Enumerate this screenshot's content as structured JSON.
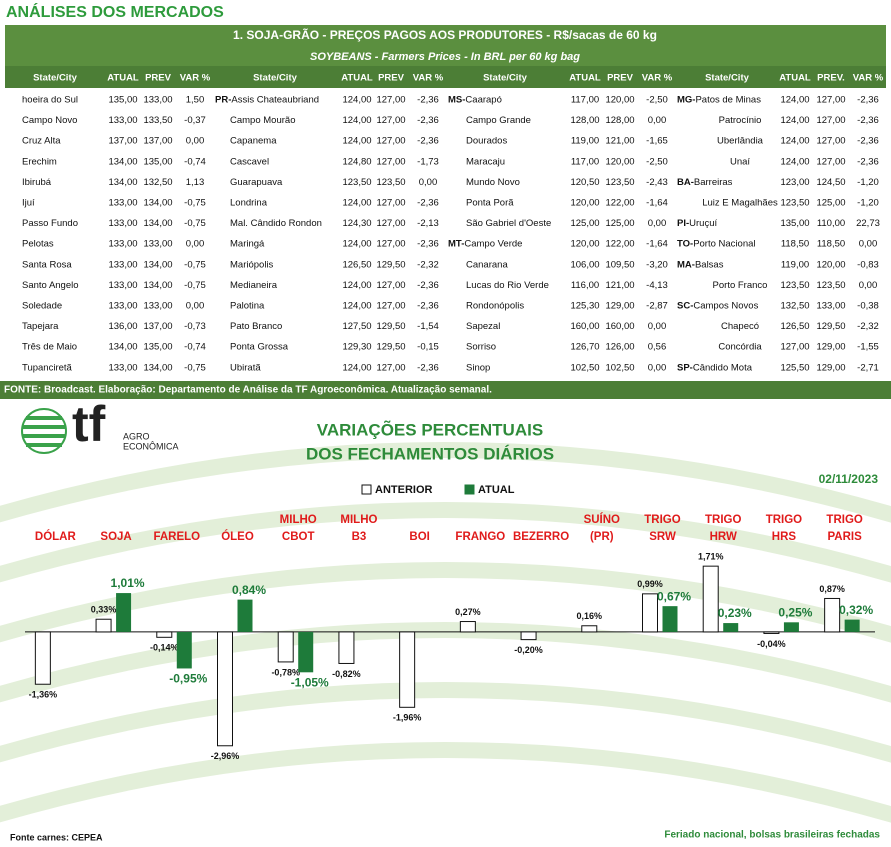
{
  "header": {
    "title": "ANÁLISES DOS MERCADOS"
  },
  "table": {
    "title": "1. SOJA-GRÃO - PREÇOS PAGOS AOS PRODUTORES - R$/sacas de 60 kg",
    "subtitle": "SOYBEANS - Farmers Prices - In BRL per 60 kg bag",
    "groups": [
      {
        "headers": [
          "State/City",
          "ATUAL",
          "PREV",
          "VAR %"
        ],
        "rows": [
          {
            "city": "hoeira do Sul",
            "atual": "135,00",
            "prev": "133,00",
            "var": "1,50"
          },
          {
            "city": "Campo Novo",
            "atual": "133,00",
            "prev": "133,50",
            "var": "-0,37"
          },
          {
            "city": "Cruz Alta",
            "atual": "137,00",
            "prev": "137,00",
            "var": "0,00"
          },
          {
            "city": "Erechim",
            "atual": "134,00",
            "prev": "135,00",
            "var": "-0,74"
          },
          {
            "city": "Ibirubá",
            "atual": "134,00",
            "prev": "132,50",
            "var": "1,13"
          },
          {
            "city": "Ijuí",
            "atual": "133,00",
            "prev": "134,00",
            "var": "-0,75"
          },
          {
            "city": "Passo Fundo",
            "atual": "133,00",
            "prev": "134,00",
            "var": "-0,75"
          },
          {
            "city": "Pelotas",
            "atual": "133,00",
            "prev": "133,00",
            "var": "0,00"
          },
          {
            "city": "Santa Rosa",
            "atual": "133,00",
            "prev": "134,00",
            "var": "-0,75"
          },
          {
            "city": "Santo Angelo",
            "atual": "133,00",
            "prev": "134,00",
            "var": "-0,75"
          },
          {
            "city": "Soledade",
            "atual": "133,00",
            "prev": "133,00",
            "var": "0,00"
          },
          {
            "city": "Tapejara",
            "atual": "136,00",
            "prev": "137,00",
            "var": "-0,73"
          },
          {
            "city": "Três de Maio",
            "atual": "134,00",
            "prev": "135,00",
            "var": "-0,74"
          },
          {
            "city": "Tupanciretã",
            "atual": "133,00",
            "prev": "134,00",
            "var": "-0,75"
          }
        ]
      },
      {
        "headers": [
          "State/City",
          "ATUAL",
          "PREV",
          "VAR %"
        ],
        "rows": [
          {
            "state": "PR-",
            "city": "Assis Chateaubriand",
            "atual": "124,00",
            "prev": "127,00",
            "var": "-2,36"
          },
          {
            "city": "Campo Mourão",
            "atual": "124,00",
            "prev": "127,00",
            "var": "-2,36"
          },
          {
            "city": "Capanema",
            "atual": "124,00",
            "prev": "127,00",
            "var": "-2,36"
          },
          {
            "city": "Cascavel",
            "atual": "124,80",
            "prev": "127,00",
            "var": "-1,73"
          },
          {
            "city": "Guarapuava",
            "atual": "123,50",
            "prev": "123,50",
            "var": "0,00"
          },
          {
            "city": "Londrina",
            "atual": "124,00",
            "prev": "127,00",
            "var": "-2,36"
          },
          {
            "city": "Mal. Cândido Rondon",
            "atual": "124,30",
            "prev": "127,00",
            "var": "-2,13"
          },
          {
            "city": "Maringá",
            "atual": "124,00",
            "prev": "127,00",
            "var": "-2,36"
          },
          {
            "city": "Mariópolis",
            "atual": "126,50",
            "prev": "129,50",
            "var": "-2,32"
          },
          {
            "city": "Medianeira",
            "atual": "124,00",
            "prev": "127,00",
            "var": "-2,36"
          },
          {
            "city": "Palotina",
            "atual": "124,00",
            "prev": "127,00",
            "var": "-2,36"
          },
          {
            "city": "Pato Branco",
            "atual": "127,50",
            "prev": "129,50",
            "var": "-1,54"
          },
          {
            "city": "Ponta Grossa",
            "atual": "129,30",
            "prev": "129,50",
            "var": "-0,15"
          },
          {
            "city": "Ubiratã",
            "atual": "124,00",
            "prev": "127,00",
            "var": "-2,36"
          }
        ]
      },
      {
        "headers": [
          "State/City",
          "ATUAL",
          "PREV",
          "VAR %"
        ],
        "rows": [
          {
            "state": "MS-",
            "city": "Caarapó",
            "atual": "117,00",
            "prev": "120,00",
            "var": "-2,50"
          },
          {
            "city": "Campo Grande",
            "atual": "128,00",
            "prev": "128,00",
            "var": "0,00"
          },
          {
            "city": "Dourados",
            "atual": "119,00",
            "prev": "121,00",
            "var": "-1,65"
          },
          {
            "city": "Maracaju",
            "atual": "117,00",
            "prev": "120,00",
            "var": "-2,50"
          },
          {
            "city": "Mundo Novo",
            "atual": "120,50",
            "prev": "123,50",
            "var": "-2,43"
          },
          {
            "city": "Ponta Porã",
            "atual": "120,00",
            "prev": "122,00",
            "var": "-1,64"
          },
          {
            "city": "São Gabriel d'Oeste",
            "atual": "125,00",
            "prev": "125,00",
            "var": "0,00"
          },
          {
            "state": "MT-",
            "city": "Campo Verde",
            "atual": "120,00",
            "prev": "122,00",
            "var": "-1,64"
          },
          {
            "city": "Canarana",
            "atual": "106,00",
            "prev": "109,50",
            "var": "-3,20"
          },
          {
            "city": "Lucas do Rio Verde",
            "atual": "116,00",
            "prev": "121,00",
            "var": "-4,13"
          },
          {
            "city": "Rondonópolis",
            "atual": "125,30",
            "prev": "129,00",
            "var": "-2,87"
          },
          {
            "city": "Sapezal",
            "atual": "160,00",
            "prev": "160,00",
            "var": "0,00"
          },
          {
            "city": "Sorriso",
            "atual": "126,70",
            "prev": "126,00",
            "var": "0,56"
          },
          {
            "city": "Sinop",
            "atual": "102,50",
            "prev": "102,50",
            "var": "0,00"
          }
        ]
      },
      {
        "headers": [
          "State/City",
          "ATUAL",
          "PREV.",
          "VAR %"
        ],
        "rows": [
          {
            "state": "MG-",
            "city": "Patos de Minas",
            "atual": "124,00",
            "prev": "127,00",
            "var": "-2,36"
          },
          {
            "city": "Patrocínio",
            "atual": "124,00",
            "prev": "127,00",
            "var": "-2,36"
          },
          {
            "city": "Uberlândia",
            "atual": "124,00",
            "prev": "127,00",
            "var": "-2,36"
          },
          {
            "city": "Unaí",
            "atual": "124,00",
            "prev": "127,00",
            "var": "-2,36"
          },
          {
            "state": "BA-",
            "city": "Barreiras",
            "atual": "123,00",
            "prev": "124,50",
            "var": "-1,20"
          },
          {
            "city": "Luiz E Magalhães",
            "atual": "123,50",
            "prev": "125,00",
            "var": "-1,20"
          },
          {
            "state": "PI-",
            "city": "Uruçuí",
            "atual": "135,00",
            "prev": "110,00",
            "var": "22,73"
          },
          {
            "state": "TO-",
            "city": "Porto Nacional",
            "atual": "118,50",
            "prev": "118,50",
            "var": "0,00"
          },
          {
            "state": "MA-",
            "city": "Balsas",
            "atual": "119,00",
            "prev": "120,00",
            "var": "-0,83"
          },
          {
            "city": "Porto Franco",
            "atual": "123,50",
            "prev": "123,50",
            "var": "0,00"
          },
          {
            "state": "SC-",
            "city": "Campos Novos",
            "atual": "132,50",
            "prev": "133,00",
            "var": "-0,38"
          },
          {
            "city": "Chapecó",
            "atual": "126,50",
            "prev": "129,50",
            "var": "-2,32"
          },
          {
            "city": "Concórdia",
            "atual": "127,00",
            "prev": "129,00",
            "var": "-1,55"
          },
          {
            "state": "SP-",
            "city": "Cândido Mota",
            "atual": "125,50",
            "prev": "129,00",
            "var": "-2,71"
          }
        ]
      }
    ],
    "source": "FONTE: Broadcast. Elaboração: Departamento de Análise da TF Agroeconômica. Atualização semanal."
  },
  "logo": {
    "mark": "tf",
    "line1": "AGRO",
    "line2": "ECONÔMICA"
  },
  "chart_data": {
    "type": "bar",
    "title": "VARIAÇÕES PERCENTUAIS",
    "subtitle": "DOS FECHAMENTOS DIÁRIOS",
    "date": "02/11/2023",
    "categories": [
      "DÓLAR",
      "SOJA",
      "FARELO",
      "ÓLEO",
      "MILHO CBOT",
      "MILHO B3",
      "BOI",
      "FRANGO",
      "BEZERRO",
      "SUÍNO (PR)",
      "TRIGO SRW",
      "TRIGO HRW",
      "TRIGO HRS",
      "TRIGO PARIS"
    ],
    "series": [
      {
        "name": "ANTERIOR",
        "color": "#ffffff",
        "values": [
          -1.36,
          0.33,
          -0.14,
          -2.96,
          -0.78,
          -0.82,
          -1.96,
          0.27,
          -0.2,
          0.16,
          0.99,
          1.71,
          -0.04,
          0.87
        ],
        "value_labels": [
          "-1,36%",
          "0,33%",
          "-0,14%",
          "-2,96%",
          "-0,78%",
          "-0,82%",
          "-1,96%",
          "0,27%",
          "-0,20%",
          "0,16%",
          "0,99%",
          "1,71%",
          "-0,04%",
          "0,87%"
        ]
      },
      {
        "name": "ATUAL",
        "color": "#1e7b3a",
        "values": [
          null,
          1.01,
          -0.95,
          0.84,
          -1.05,
          null,
          null,
          null,
          null,
          null,
          0.67,
          0.23,
          0.25,
          0.32
        ],
        "value_labels": [
          null,
          "1,01%",
          "-0,95%",
          "0,84%",
          "-1,05%",
          null,
          null,
          null,
          null,
          null,
          "0,67%",
          "0,23%",
          "0,25%",
          "0,32%"
        ]
      }
    ],
    "ylim": [
      -3.2,
      2.0
    ],
    "legend": "top-center",
    "category_color": "#e01b1b"
  },
  "footer": {
    "left": "Fonte carnes: CEPEA",
    "right": "Feriado nacional, bolsas brasileiras fechadas"
  }
}
